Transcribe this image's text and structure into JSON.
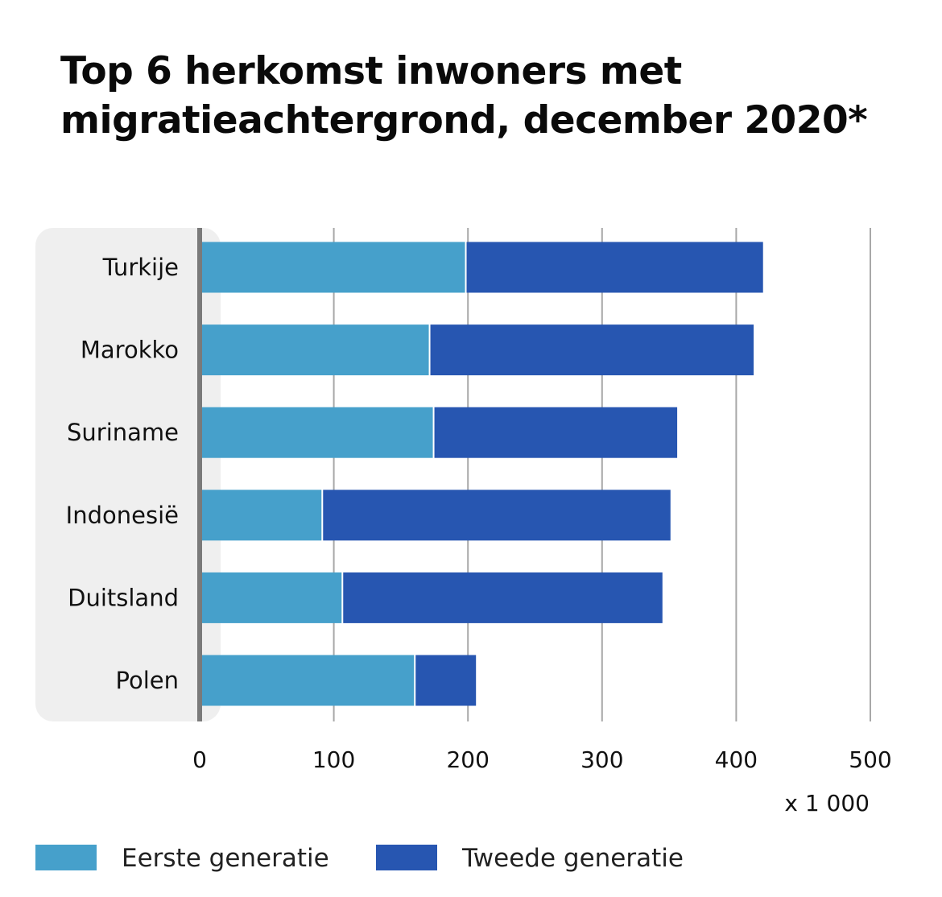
{
  "title": "Top 6 herkomst inwoners met migratieachtergrond, december 2020*",
  "colors": {
    "first": "#46a0cb",
    "second": "#2756b1",
    "panel": "#efefef",
    "grid": "#a8a8a8",
    "axis": "#7a7a7a"
  },
  "chart_data": {
    "type": "bar",
    "orientation": "horizontal",
    "stacked": true,
    "title": "Top 6 herkomst inwoners met migratieachtergrond, december 2020*",
    "categories": [
      "Turkije",
      "Marokko",
      "Suriname",
      "Indonesië",
      "Duitsland",
      "Polen"
    ],
    "series": [
      {
        "name": "Eerste generatie",
        "color": "#46a0cb",
        "values": [
          199,
          172,
          175,
          92,
          107,
          161
        ]
      },
      {
        "name": "Tweede generatie",
        "color": "#2756b1",
        "values": [
          221,
          241,
          181,
          259,
          238,
          45
        ]
      }
    ],
    "xlim": [
      0,
      500
    ],
    "xticks": [
      "0",
      "100",
      "200",
      "300",
      "400",
      "500"
    ],
    "xunit": "x 1 000",
    "grid": true,
    "legend_position": "bottom-left"
  }
}
